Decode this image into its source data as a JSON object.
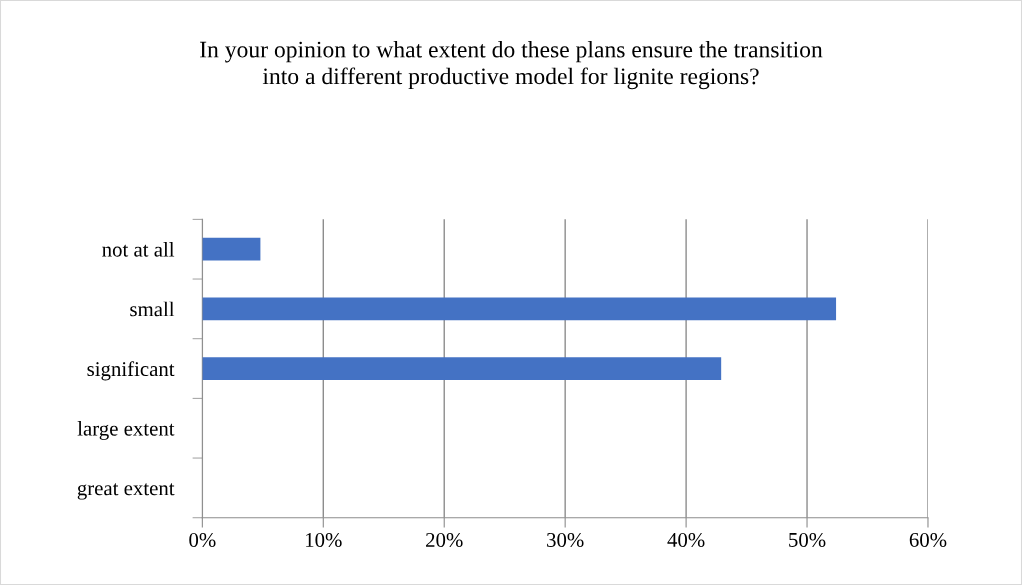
{
  "chart_data": {
    "type": "bar",
    "orientation": "horizontal",
    "title": "In your opinion to what extent do these plans ensure the transition\ninto a different productive model for lignite regions?",
    "categories": [
      "not at all",
      "small",
      "significant",
      "large extent",
      "great extent"
    ],
    "values": [
      4.8,
      52.4,
      42.9,
      0,
      0
    ],
    "color": "#4472c4",
    "xlim": [
      0,
      60
    ],
    "xticks": [
      {
        "value": 0,
        "label": "0%"
      },
      {
        "value": 10,
        "label": "10%"
      },
      {
        "value": 20,
        "label": "20%"
      },
      {
        "value": 30,
        "label": "30%"
      },
      {
        "value": 40,
        "label": "40%"
      },
      {
        "value": 50,
        "label": "50%"
      },
      {
        "value": 60,
        "label": "60%"
      }
    ],
    "grid": "x",
    "legend": false
  }
}
